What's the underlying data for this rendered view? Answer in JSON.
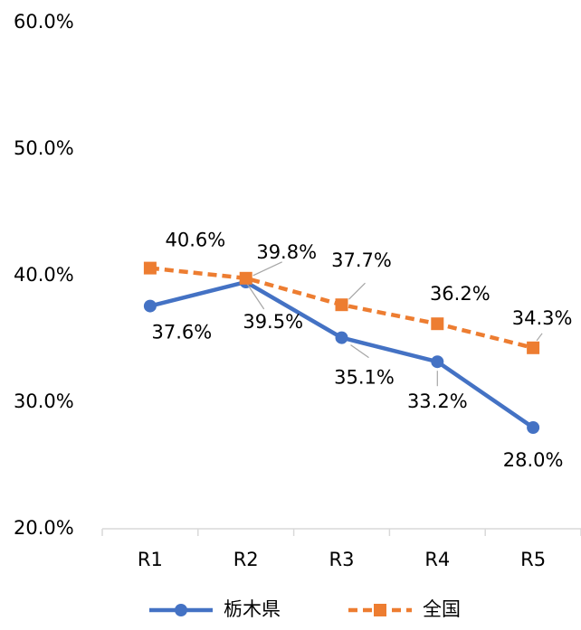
{
  "chart_data": {
    "type": "line",
    "categories": [
      "R1",
      "R2",
      "R3",
      "R4",
      "R5"
    ],
    "series": [
      {
        "name": "栃木県",
        "color": "#4472c4",
        "marker": "circle",
        "dashed": false,
        "values": [
          37.6,
          39.5,
          35.1,
          33.2,
          28.0
        ],
        "value_labels": [
          "37.6%",
          "39.5%",
          "35.1%",
          "33.2%",
          "28.0%"
        ]
      },
      {
        "name": "全国",
        "color": "#ed7d31",
        "marker": "square",
        "dashed": true,
        "values": [
          40.6,
          39.8,
          37.7,
          36.2,
          34.3
        ],
        "value_labels": [
          "40.6%",
          "39.8%",
          "37.7%",
          "36.2%",
          "34.3%"
        ]
      }
    ],
    "ylim": [
      20,
      60
    ],
    "yticks": [
      {
        "value": 20,
        "label": "20.0%"
      },
      {
        "value": 30,
        "label": "30.0%"
      },
      {
        "value": 40,
        "label": "40.0%"
      },
      {
        "value": 50,
        "label": "50.0%"
      },
      {
        "value": 60,
        "label": "60.0%"
      }
    ],
    "grid": false,
    "legend": "bottom"
  }
}
